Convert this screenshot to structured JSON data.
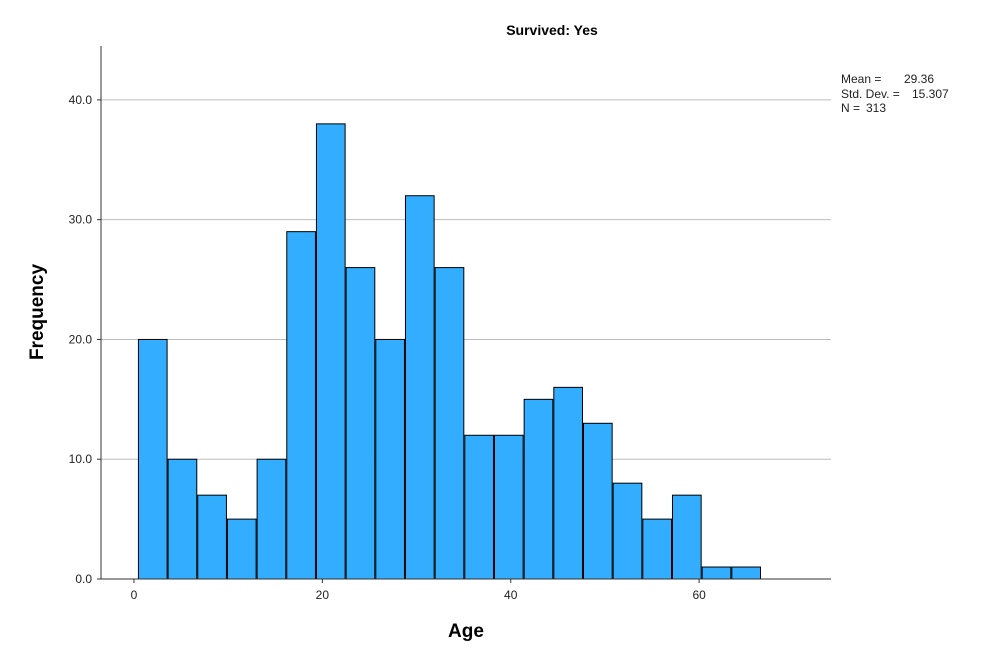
{
  "chart_data": {
    "type": "bar",
    "title": "Survived: Yes",
    "xlabel": "Age",
    "ylabel": "Frequency",
    "bin_width": 3.15,
    "x_start": 0.42,
    "values": [
      20,
      10,
      7,
      5,
      10,
      29,
      38,
      26,
      20,
      32,
      26,
      12,
      12,
      15,
      16,
      13,
      8,
      5,
      7,
      1,
      1
    ],
    "x_ticks": [
      0,
      20,
      40,
      60
    ],
    "x_tick_labels": [
      "0",
      "20",
      "40",
      "60"
    ],
    "y_ticks": [
      0,
      10,
      20,
      30,
      40
    ],
    "y_tick_labels": [
      "0.0",
      "10.0",
      "20.0",
      "30.0",
      "40.0"
    ],
    "xlim": [
      -3.5,
      74
    ],
    "ylim": [
      0,
      44.5
    ],
    "grid": true,
    "bar_color": "#33adff",
    "bar_edge_color": "#000000",
    "stats": {
      "mean_label": "Mean =",
      "mean_value": "29.36",
      "std_label": "Std. Dev. =",
      "std_value": "15.307",
      "n_label": "N =",
      "n_value": "313"
    }
  }
}
